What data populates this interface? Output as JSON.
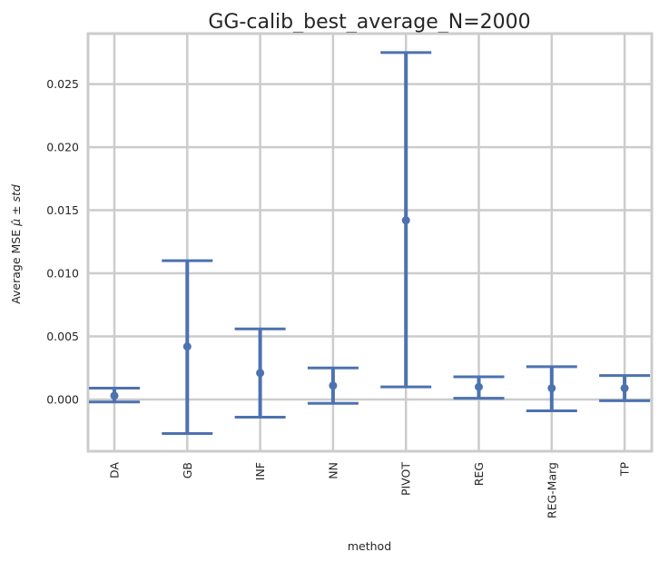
{
  "chart_data": {
    "type": "errorbar",
    "title": "GG-calib_best_average_N=2000",
    "xlabel": "method",
    "ylabel_text": "Average MSE ",
    "ylabel_math": "μ̂ ± std",
    "categories": [
      "DA",
      "GB",
      "INF",
      "NN",
      "PIVOT",
      "REG",
      "REG-Marg",
      "TP"
    ],
    "mean": [
      0.0003,
      0.0042,
      0.0021,
      0.0011,
      0.0142,
      0.001,
      0.0009,
      0.0009
    ],
    "lower": [
      -0.0002,
      -0.0027,
      -0.0014,
      -0.0003,
      0.001,
      0.0001,
      -0.0009,
      -0.0001
    ],
    "upper": [
      0.0009,
      0.011,
      0.0056,
      0.0025,
      0.0275,
      0.0018,
      0.0026,
      0.0019
    ],
    "ylim": [
      -0.0041,
      0.029
    ],
    "yticks": [
      0.0,
      0.005,
      0.01,
      0.015,
      0.02,
      0.025
    ],
    "ytick_labels": [
      "0.000",
      "0.005",
      "0.010",
      "0.015",
      "0.020",
      "0.025"
    ],
    "grid": true,
    "color": "#4c72b0"
  }
}
